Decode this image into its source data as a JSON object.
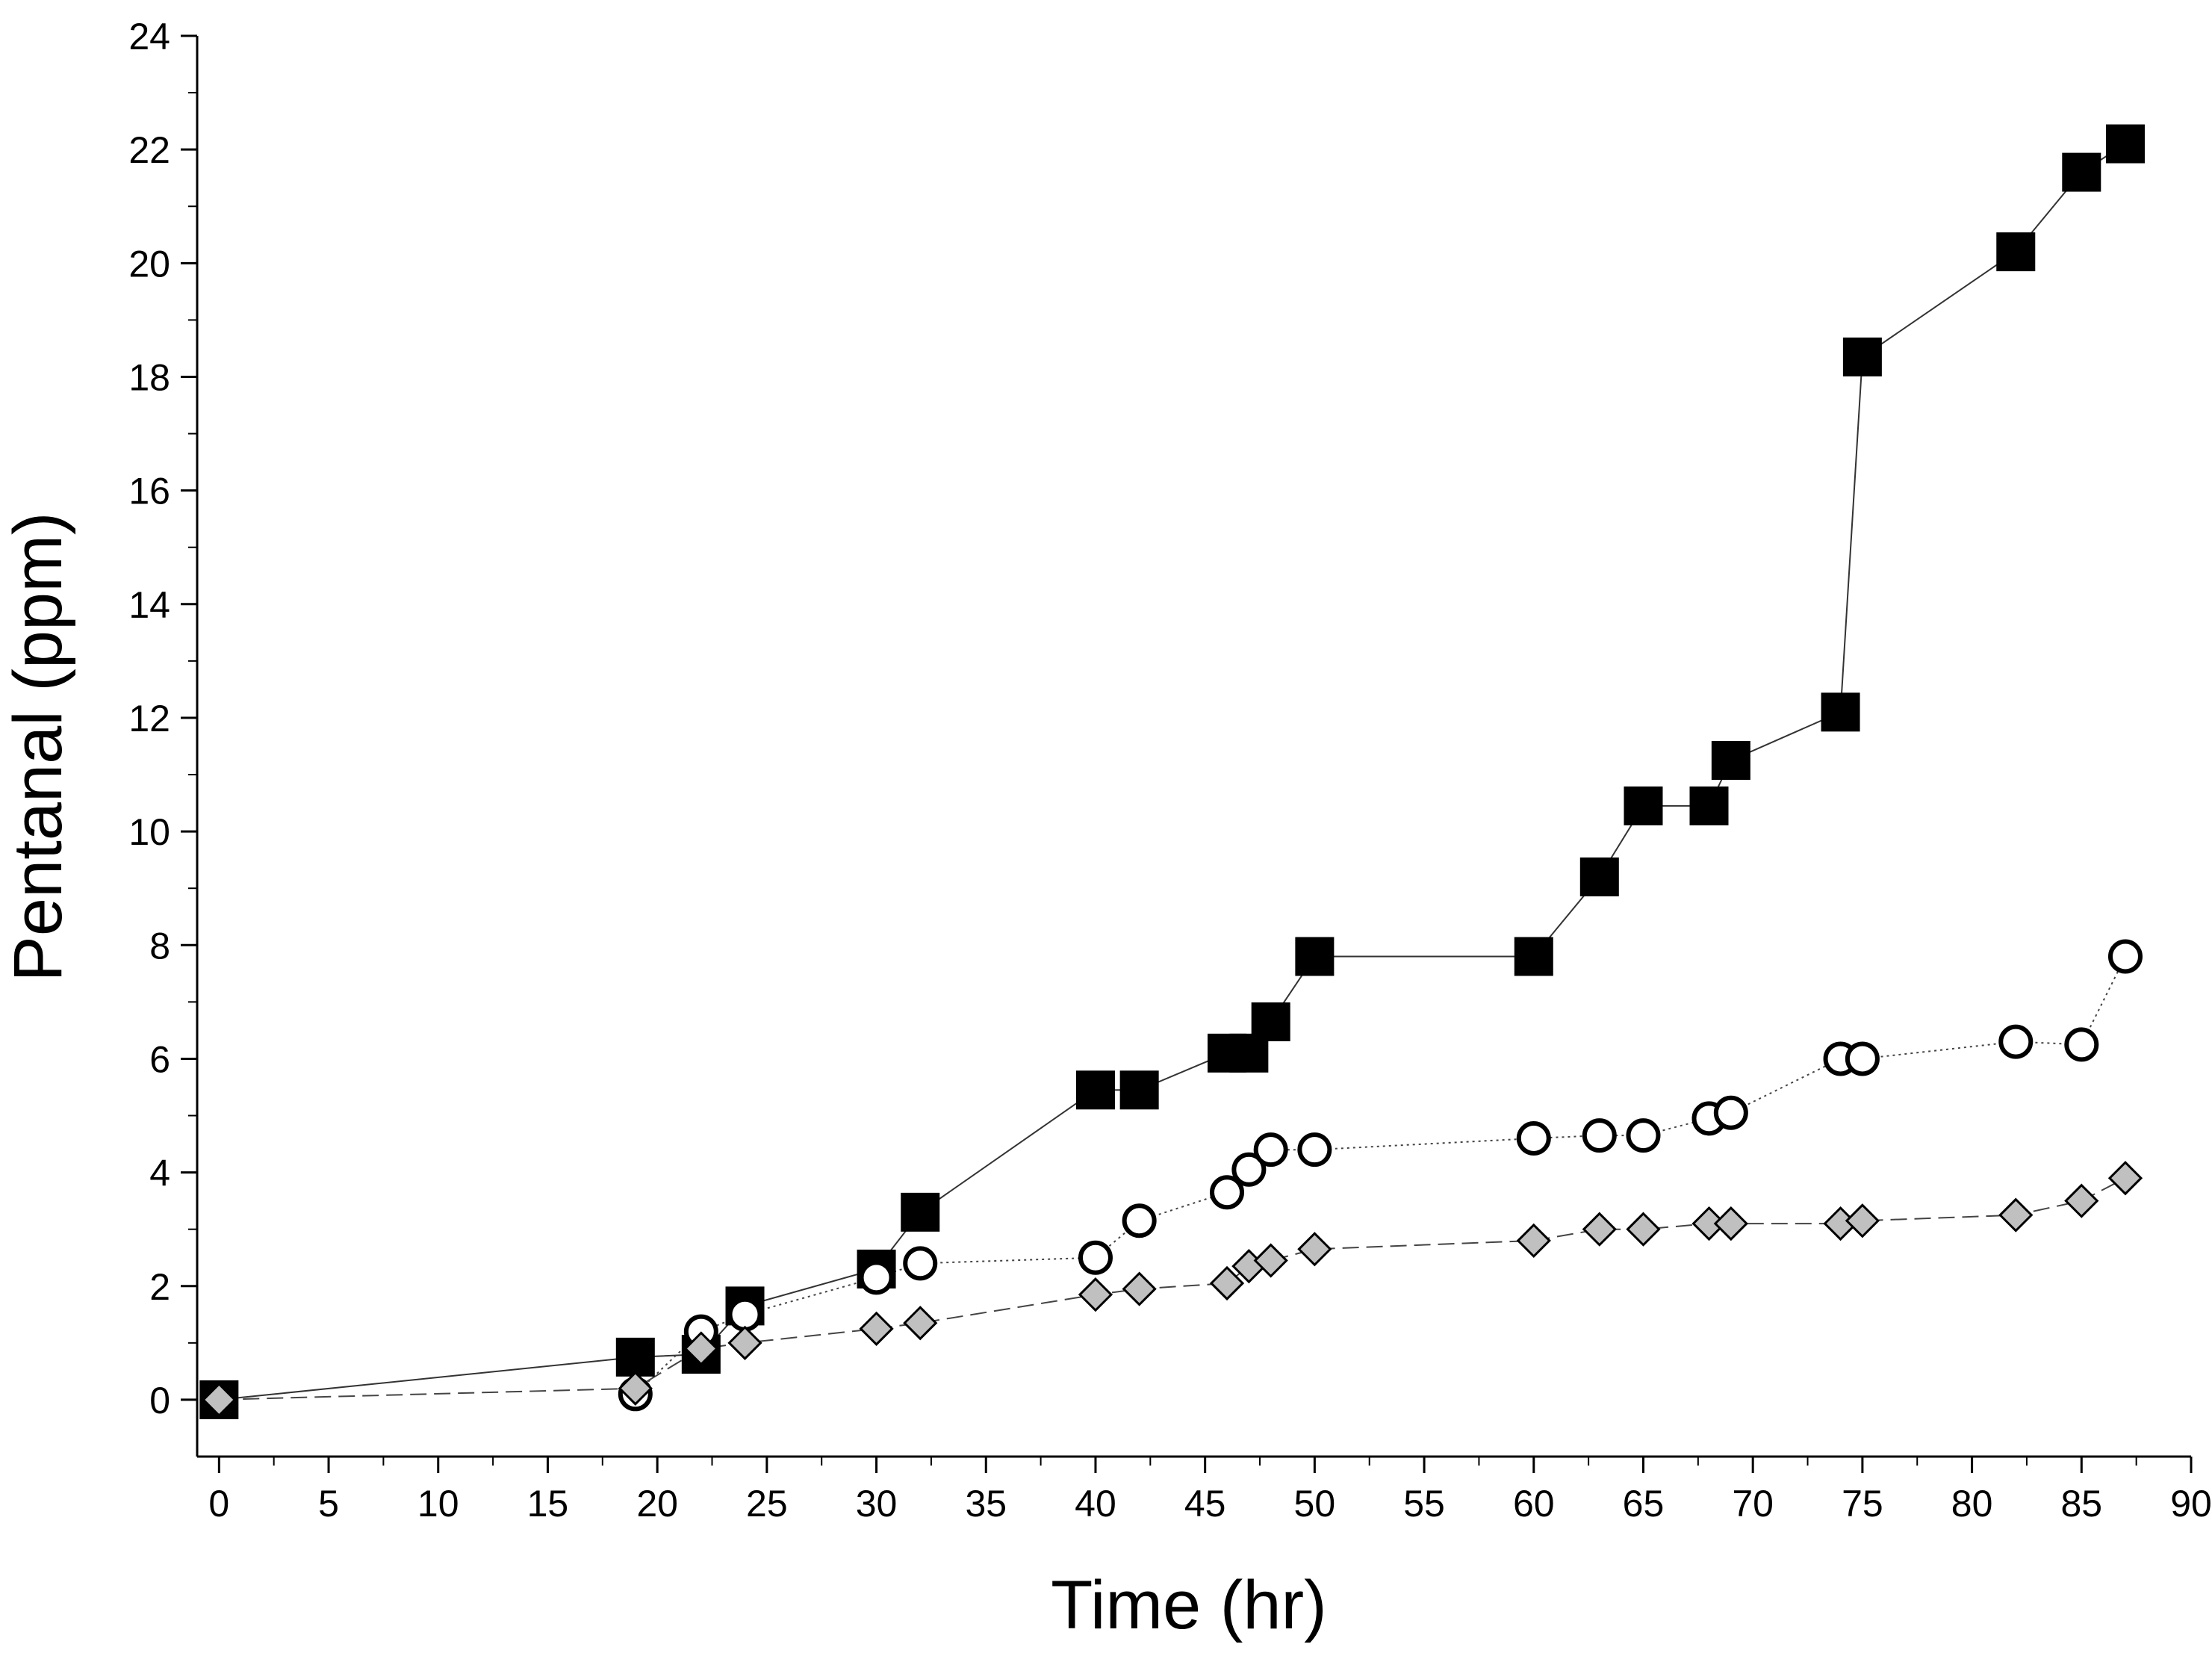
{
  "chart_data": {
    "type": "scatter",
    "title": "",
    "xlabel": "Time (hr)",
    "ylabel": "Pentanal (ppm)",
    "xlim": [
      -1,
      90
    ],
    "ylim": [
      -1,
      24
    ],
    "xticks": [
      0,
      5,
      10,
      15,
      20,
      25,
      30,
      35,
      40,
      45,
      50,
      55,
      60,
      65,
      70,
      75,
      80,
      85,
      90
    ],
    "yticks": [
      0,
      2,
      4,
      6,
      8,
      10,
      12,
      14,
      16,
      18,
      20,
      22,
      24
    ],
    "xtick_labels": [
      "0",
      "5",
      "10",
      "15",
      "20",
      "25",
      "30",
      "35",
      "40",
      "45",
      "50",
      "55",
      "60",
      "65",
      "70",
      "75",
      "80",
      "85",
      "90"
    ],
    "ytick_labels": [
      "0",
      "2",
      "4",
      "6",
      "8",
      "10",
      "12",
      "14",
      "16",
      "18",
      "20",
      "22",
      "24"
    ],
    "grid": false,
    "legend": "none",
    "series": [
      {
        "name": "filled-square-series",
        "marker": "square",
        "fill": "#000000",
        "line_style": "solid",
        "x": [
          0,
          19,
          22,
          24,
          30,
          32,
          40,
          42,
          46,
          47,
          48,
          50,
          60,
          63,
          65,
          68,
          69,
          74,
          75,
          82,
          85,
          87
        ],
        "y": [
          0,
          0.75,
          0.8,
          1.65,
          2.3,
          3.3,
          5.45,
          5.45,
          6.1,
          6.1,
          6.65,
          7.8,
          7.8,
          9.2,
          10.45,
          10.45,
          11.25,
          12.1,
          18.35,
          20.2,
          21.6,
          22.1
        ]
      },
      {
        "name": "open-circle-series",
        "marker": "circle",
        "fill": "#ffffff",
        "line_style": "dotted",
        "x": [
          19,
          22,
          24,
          30,
          32,
          40,
          42,
          46,
          47,
          48,
          50,
          60,
          63,
          65,
          68,
          69,
          74,
          75,
          82,
          85,
          87
        ],
        "y": [
          0.1,
          1.2,
          1.5,
          2.15,
          2.4,
          2.5,
          3.15,
          3.65,
          4.05,
          4.4,
          4.4,
          4.6,
          4.65,
          4.65,
          4.95,
          5.05,
          6.0,
          6.0,
          6.3,
          6.25,
          7.8
        ]
      },
      {
        "name": "gray-diamond-series",
        "marker": "diamond",
        "fill": "#c0c0c0",
        "line_style": "dashed",
        "x": [
          0,
          19,
          22,
          24,
          30,
          32,
          40,
          42,
          46,
          47,
          48,
          50,
          60,
          63,
          65,
          68,
          69,
          74,
          75,
          82,
          85,
          87
        ],
        "y": [
          0,
          0.2,
          0.9,
          1.0,
          1.25,
          1.35,
          1.85,
          1.95,
          2.05,
          2.35,
          2.45,
          2.65,
          2.8,
          3.0,
          3.0,
          3.1,
          3.1,
          3.1,
          3.15,
          3.25,
          3.5,
          3.9
        ]
      }
    ]
  }
}
